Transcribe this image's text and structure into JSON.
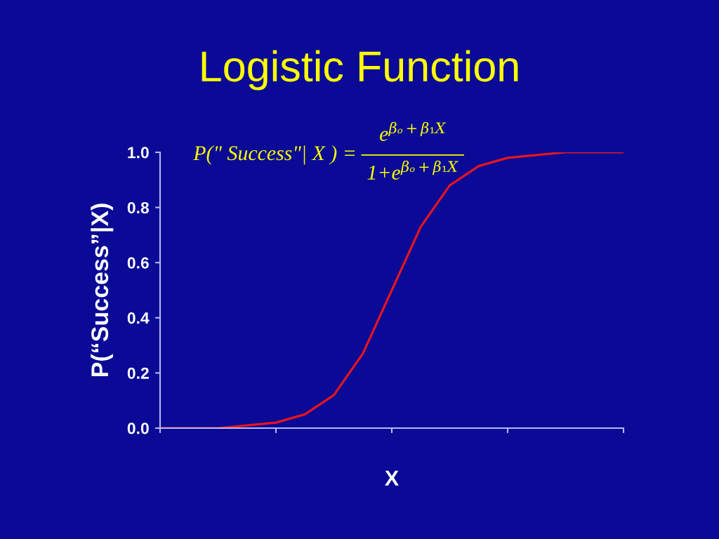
{
  "chart_data": {
    "type": "line",
    "title": "Logistic Function",
    "xlabel": "X",
    "ylabel": "P(“Success”|X)",
    "annotations": [
      "P(\" Success\"| X ) =",
      "e$^{βₒ+β₁X}$",
      "1+e$^{βₒ+β₁X}$"
    ],
    "categories": [
      null,
      null,
      null,
      null,
      null,
      null,
      null,
      null,
      null,
      null,
      null,
      null,
      null,
      null,
      null,
      null,
      null
    ],
    "series": [
      {
        "color": "#e8141e",
        "values": [
          0,
          0,
          0,
          0.01,
          0.02,
          0.05,
          0.12,
          0.27,
          0.5,
          0.73,
          0.88,
          0.95,
          0.98,
          0.99,
          1,
          1,
          1
        ]
      }
    ],
    "ylim": [
      0,
      1
    ],
    "yticks": [
      {
        "value": 0,
        "label": "0.0"
      },
      0.2,
      0.4,
      0.6,
      0.8,
      {
        "value": 1,
        "label": "1.0"
      }
    ],
    "tick_labels": "y"
  }
}
